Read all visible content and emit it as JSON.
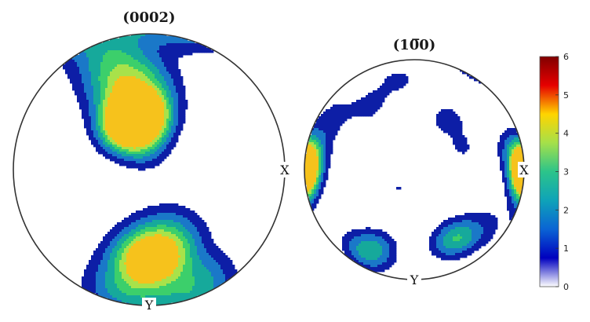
{
  "chart_data": [
    {
      "type": "heatmap",
      "title": "(0002)",
      "axis_letters": {
        "x": "X",
        "y": "Y"
      },
      "peaks": [
        {
          "theta": 30,
          "phi": 118,
          "max": 5.6,
          "spread": 11
        },
        {
          "theta": 32,
          "phi": 98,
          "max": 6.2,
          "spread": 11
        },
        {
          "theta": 48,
          "phi": 100,
          "max": 3.4,
          "spread": 16
        },
        {
          "theta": 62,
          "phi": 108,
          "max": 1.8,
          "spread": 14
        },
        {
          "theta": 80,
          "phi": 110,
          "max": 1.5,
          "spread": 14
        },
        {
          "theta": 55,
          "phi": 270,
          "max": 4.6,
          "spread": 13
        },
        {
          "theta": 45,
          "phi": 285,
          "max": 2.8,
          "spread": 15
        },
        {
          "theta": 70,
          "phi": 265,
          "max": 2.2,
          "spread": 16
        },
        {
          "theta": 85,
          "phi": 255,
          "max": 1.4,
          "spread": 12
        },
        {
          "theta": 85,
          "phi": 290,
          "max": 1.3,
          "spread": 12
        },
        {
          "theta": 75,
          "phi": 300,
          "max": 1.1,
          "spread": 10
        },
        {
          "theta": 12,
          "phi": 95,
          "max": 1.3,
          "spread": 10
        }
      ]
    },
    {
      "type": "heatmap",
      "title": "(10̅0)",
      "axis_letters": {
        "x": "X",
        "y": "Y"
      },
      "peaks": [
        {
          "theta": 88,
          "phi": 178,
          "max": 6.2,
          "spread": 9
        },
        {
          "theta": 80,
          "phi": 168,
          "max": 1.6,
          "spread": 12
        },
        {
          "theta": 88,
          "phi": 2,
          "max": 4.8,
          "spread": 9
        },
        {
          "theta": 78,
          "phi": 12,
          "max": 1.4,
          "spread": 10
        },
        {
          "theta": 76,
          "phi": 240,
          "max": 2.9,
          "spread": 11
        },
        {
          "theta": 62,
          "phi": 245,
          "max": 1.2,
          "spread": 9
        },
        {
          "theta": 62,
          "phi": 300,
          "max": 3.2,
          "spread": 11
        },
        {
          "theta": 72,
          "phi": 320,
          "max": 1.2,
          "spread": 12
        },
        {
          "theta": 60,
          "phi": 125,
          "max": 1.3,
          "spread": 10
        },
        {
          "theta": 45,
          "phi": 55,
          "max": 1.4,
          "spread": 11
        },
        {
          "theta": 72,
          "phi": 100,
          "max": 1.2,
          "spread": 10
        },
        {
          "theta": 75,
          "phi": 145,
          "max": 1.1,
          "spread": 9
        },
        {
          "theta": 40,
          "phi": 25,
          "max": 1.1,
          "spread": 6
        },
        {
          "theta": 18,
          "phi": 230,
          "max": 1.05,
          "spread": 4
        }
      ]
    }
  ],
  "contour_levels": [
    1,
    1.8,
    2.6,
    3.4,
    4.2,
    5.0
  ],
  "colorbar": {
    "min": 0,
    "max": 6,
    "ticks": [
      "0",
      "1",
      "2",
      "3",
      "4",
      "5",
      "6"
    ],
    "colors": [
      "#ffffff",
      "#0000bf",
      "#0a64d4",
      "#0fa3b8",
      "#2cc48a",
      "#a5e04a",
      "#ffd400",
      "#e60000",
      "#800000"
    ]
  },
  "band_colors": [
    "#0d1ea6",
    "#1a78c8",
    "#16a99b",
    "#3ccf6b",
    "#a8e24a",
    "#f6c21c",
    "#8b0000"
  ]
}
